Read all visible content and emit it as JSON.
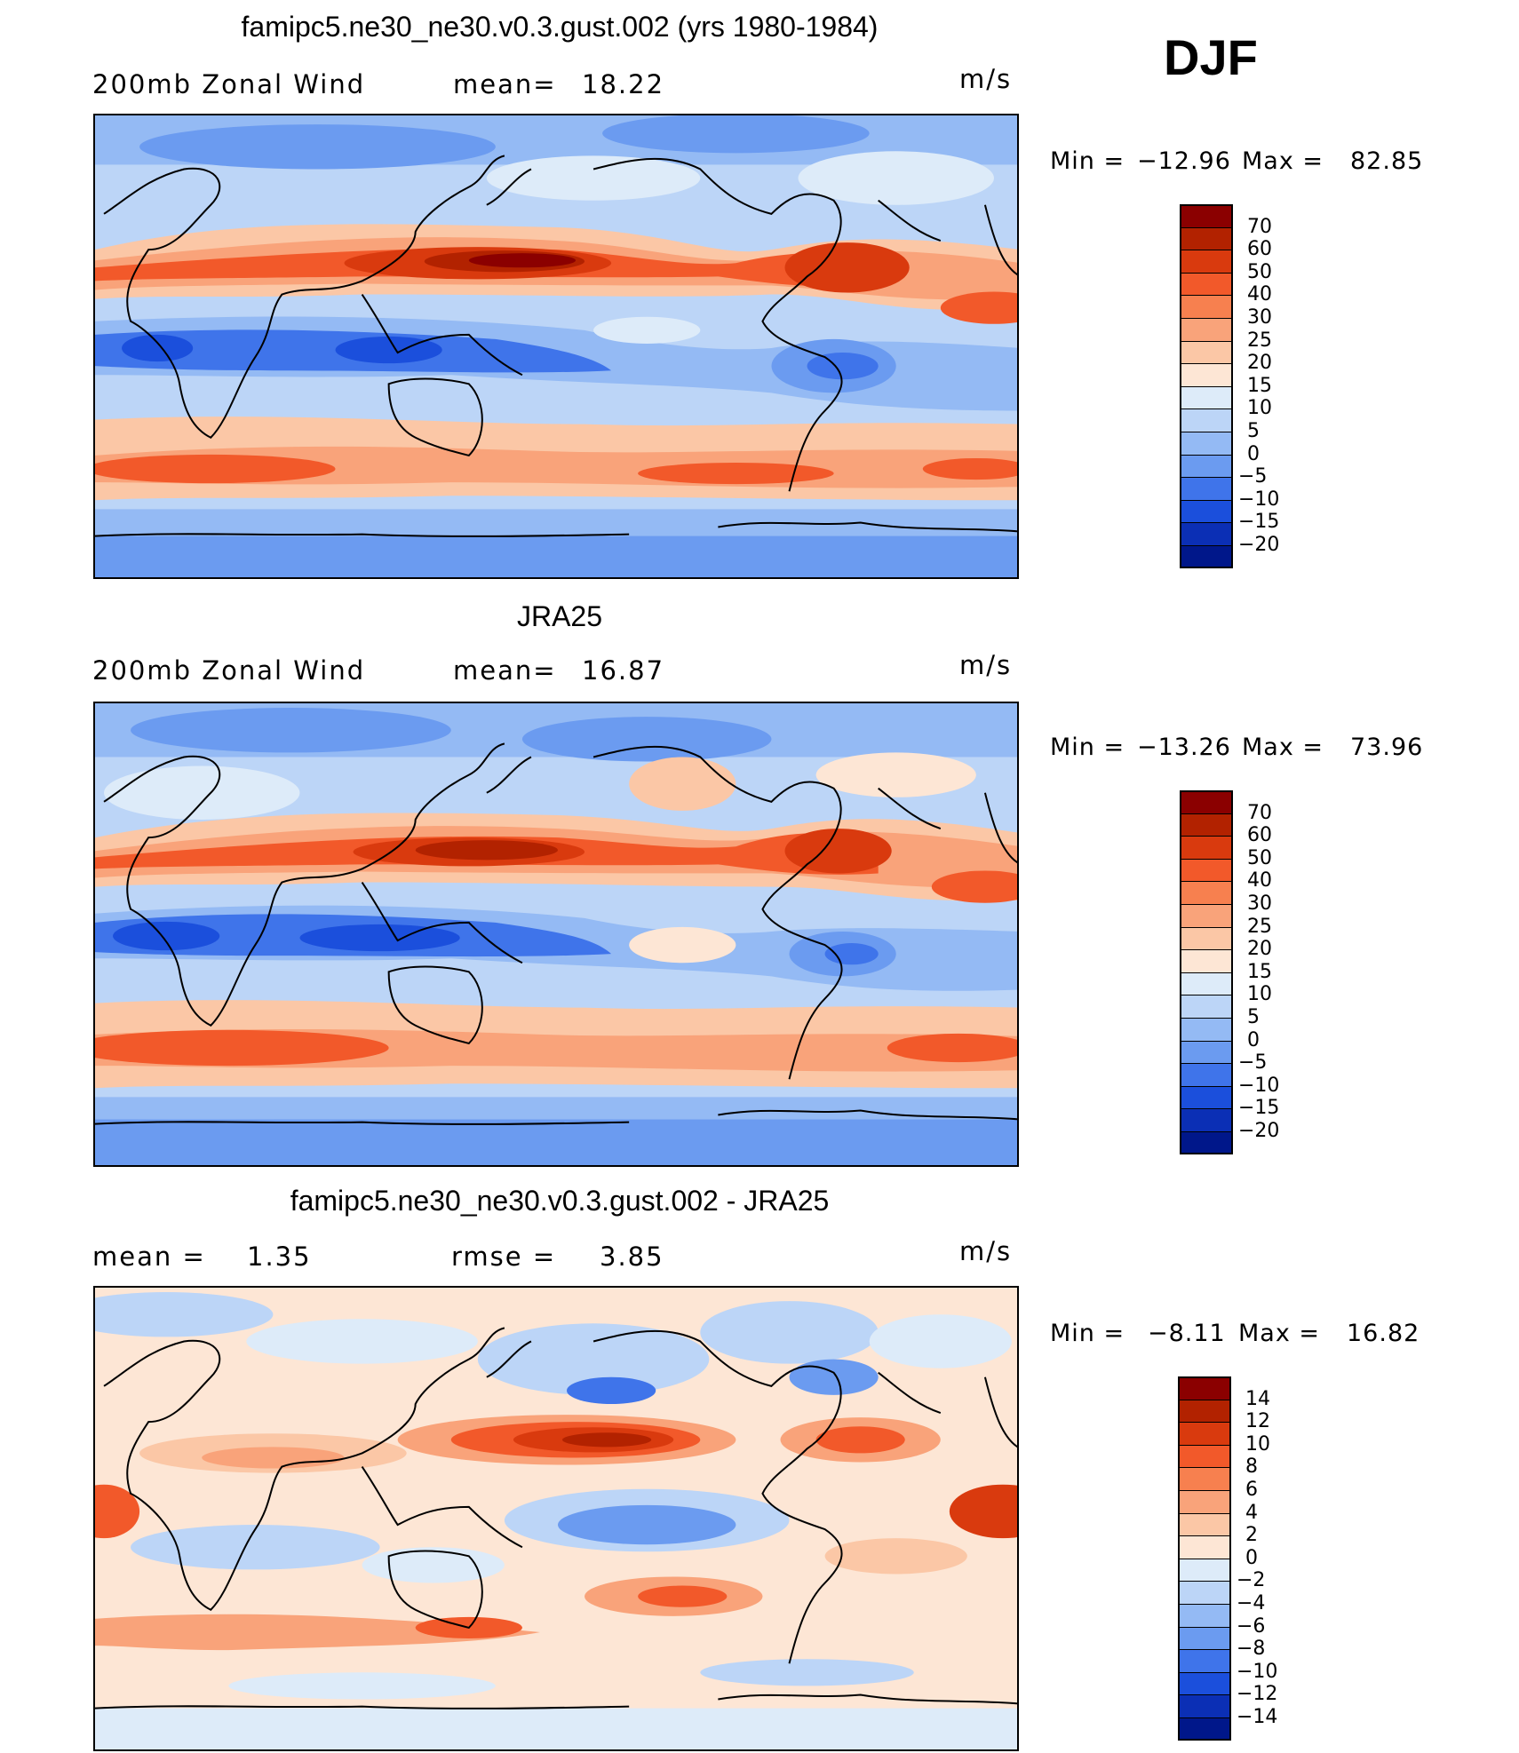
{
  "season": "DJF",
  "units": "m/s",
  "panels": [
    {
      "title": "famipc5.ne30_ne30.v0.3.gust.002 (yrs 1980-1984)",
      "left_label": "200mb Zonal Wind",
      "stat_label": "mean=",
      "stat_value": "18.22",
      "units": "m/s",
      "min_label": "Min =",
      "min_value": "−12.96",
      "max_label": "Max =",
      "max_value": "82.85"
    },
    {
      "title": "JRA25",
      "left_label": "200mb Zonal Wind",
      "stat_label": "mean=",
      "stat_value": "16.87",
      "units": "m/s",
      "min_label": "Min =",
      "min_value": "−13.26",
      "max_label": "Max =",
      "max_value": "73.96"
    },
    {
      "title": "famipc5.ne30_ne30.v0.3.gust.002 - JRA25",
      "left_label": "mean =",
      "left_value": "1.35",
      "stat_label": "rmse =",
      "stat_value": "3.85",
      "units": "m/s",
      "min_label": "Min =",
      "min_value": "−8.11",
      "max_label": "Max =",
      "max_value": "16.82"
    }
  ],
  "chart_data": [
    {
      "type": "heatmap",
      "title": "famipc5.ne30_ne30.v0.3.gust.002 (yrs 1980-1984)",
      "variable": "200mb Zonal Wind",
      "units": "m/s",
      "mean": 18.22,
      "min": -12.96,
      "max": 82.85,
      "colorbar_levels": [
        70,
        60,
        50,
        40,
        30,
        25,
        20,
        15,
        10,
        5,
        0,
        -5,
        -10,
        -15,
        -20
      ],
      "colorbar_colors": [
        "#8b0000",
        "#b22200",
        "#d93a0e",
        "#f2592a",
        "#f7804f",
        "#f9a37a",
        "#fbc7a6",
        "#fde6d5",
        "#ddebf9",
        "#bcd5f7",
        "#94baf4",
        "#6b9bf0",
        "#3f74ea",
        "#1b4fdc",
        "#0b2fb5",
        "#00178a"
      ]
    },
    {
      "type": "heatmap",
      "title": "JRA25",
      "variable": "200mb Zonal Wind",
      "units": "m/s",
      "mean": 16.87,
      "min": -13.26,
      "max": 73.96,
      "colorbar_levels": [
        70,
        60,
        50,
        40,
        30,
        25,
        20,
        15,
        10,
        5,
        0,
        -5,
        -10,
        -15,
        -20
      ],
      "colorbar_colors": [
        "#8b0000",
        "#b22200",
        "#d93a0e",
        "#f2592a",
        "#f7804f",
        "#f9a37a",
        "#fbc7a6",
        "#fde6d5",
        "#ddebf9",
        "#bcd5f7",
        "#94baf4",
        "#6b9bf0",
        "#3f74ea",
        "#1b4fdc",
        "#0b2fb5",
        "#00178a"
      ]
    },
    {
      "type": "heatmap",
      "title": "famipc5.ne30_ne30.v0.3.gust.002 - JRA25",
      "units": "m/s",
      "mean": 1.35,
      "rmse": 3.85,
      "min": -8.11,
      "max": 16.82,
      "colorbar_levels": [
        14,
        12,
        10,
        8,
        6,
        4,
        2,
        0,
        -2,
        -4,
        -6,
        -8,
        -10,
        -12,
        -14
      ],
      "colorbar_colors": [
        "#8b0000",
        "#b22200",
        "#d93a0e",
        "#f2592a",
        "#f7804f",
        "#f9a37a",
        "#fbc7a6",
        "#fde6d5",
        "#ddebf9",
        "#bcd5f7",
        "#94baf4",
        "#6b9bf0",
        "#3f74ea",
        "#1b4fdc",
        "#0b2fb5",
        "#00178a"
      ]
    }
  ]
}
